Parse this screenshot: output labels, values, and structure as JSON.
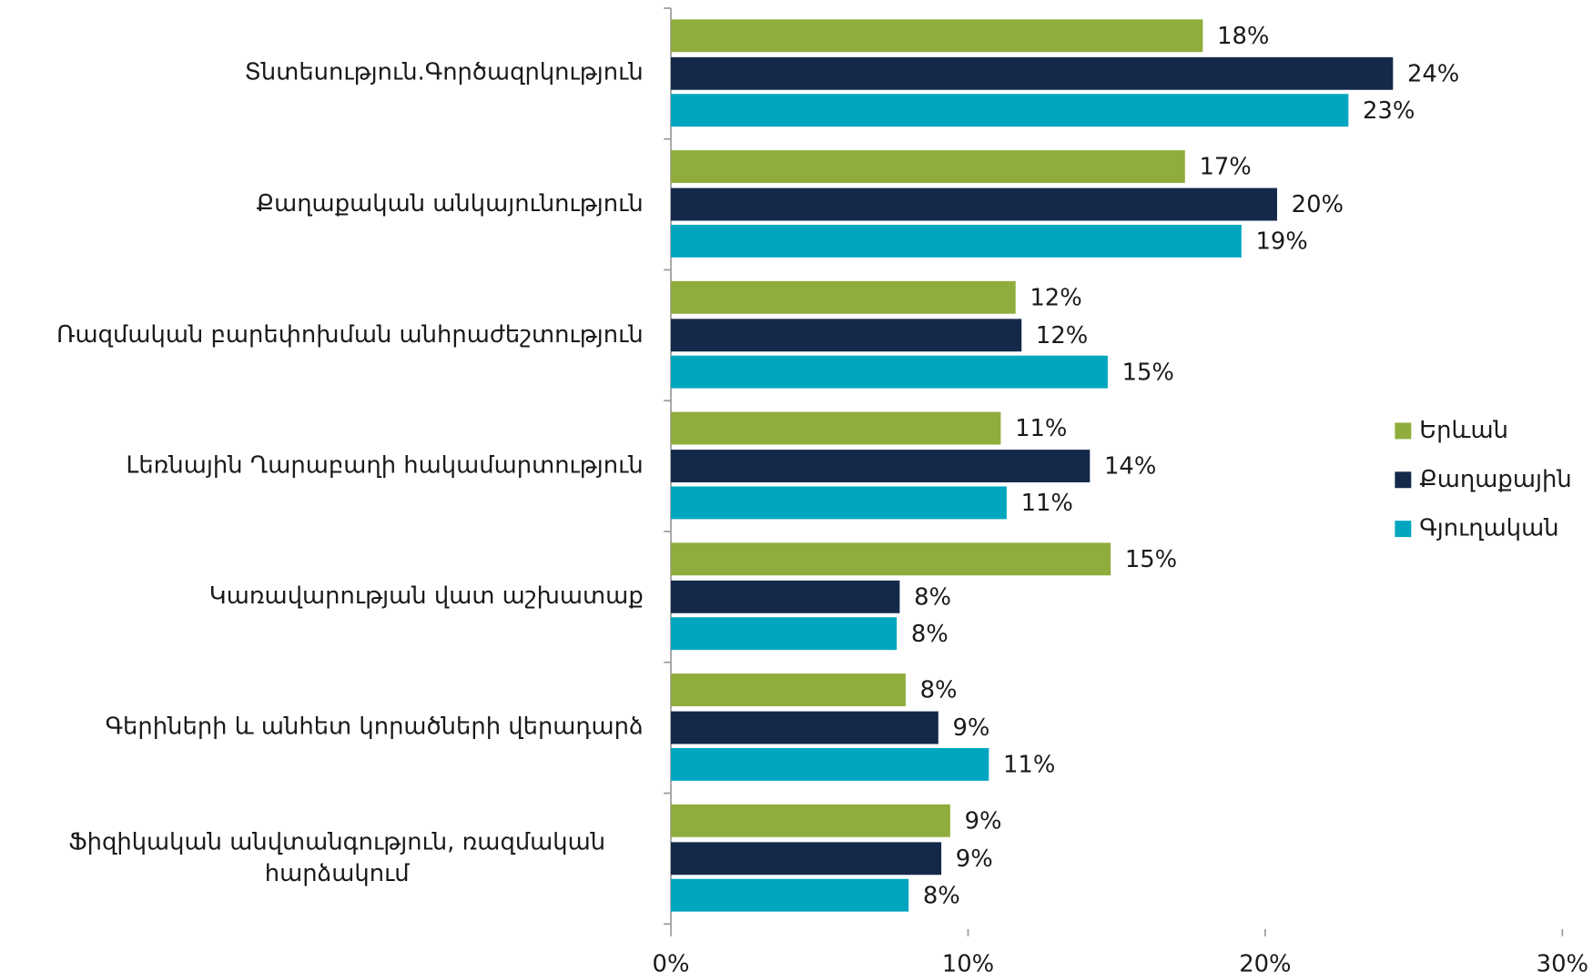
{
  "chart_data": {
    "type": "bar",
    "orientation": "horizontal",
    "categories": [
      "Տնտեսություն.Գործազրկություն",
      "Քաղաքական անկայունություն",
      "Ռազմական բարեփոխման անհրաժեշտություն",
      "Լեռնային Ղարաբաղի հակամարտություն",
      "Կառավարության վատ աշխատաք",
      "Գերիների և անհետ կորածների վերադարձ",
      "Ֆիզիկական անվտանգություն, ռազմական հարձակում"
    ],
    "series": [
      {
        "name": "Երևան",
        "color": "#8fad3c",
        "values": [
          17.9,
          17.3,
          11.6,
          11.1,
          14.8,
          7.9,
          9.4
        ],
        "value_labels": [
          "18%",
          "17%",
          "12%",
          "11%",
          "15%",
          "8%",
          "9%"
        ]
      },
      {
        "name": "Քաղաքային",
        "color": "#14294a",
        "values": [
          24.3,
          20.4,
          11.8,
          14.1,
          7.7,
          9.0,
          9.1
        ],
        "value_labels": [
          "24%",
          "20%",
          "12%",
          "14%",
          "8%",
          "9%",
          "9%"
        ]
      },
      {
        "name": "Գյուղական",
        "color": "#00a6bf",
        "values": [
          22.8,
          19.2,
          14.7,
          11.3,
          7.6,
          10.7,
          8.0
        ],
        "value_labels": [
          "23%",
          "19%",
          "15%",
          "11%",
          "8%",
          "11%",
          "8%"
        ]
      }
    ],
    "xlim": [
      0,
      30
    ],
    "xticks": [
      {
        "value": 0,
        "label": "0%"
      },
      {
        "value": 10,
        "label": "10%"
      },
      {
        "value": 20,
        "label": "20%"
      },
      {
        "value": 30,
        "label": "30%"
      }
    ],
    "grid": false,
    "legend": "right"
  }
}
